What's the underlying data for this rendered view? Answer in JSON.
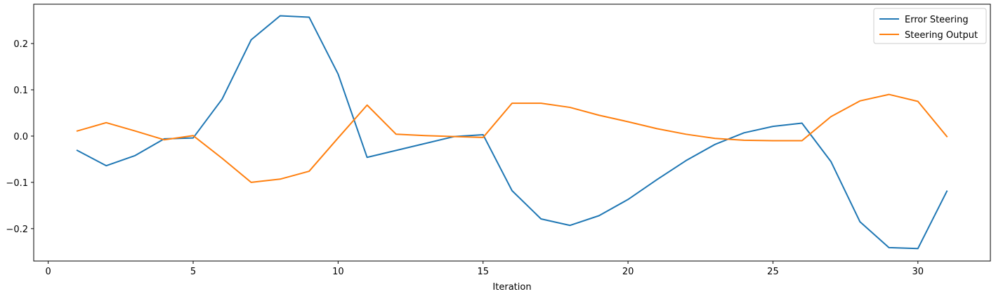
{
  "chart_data": {
    "type": "line",
    "title": "",
    "xlabel": "Iteration",
    "ylabel": "",
    "xlim": [
      -0.5,
      32.5
    ],
    "ylim": [
      -0.27,
      0.285
    ],
    "xticks": [
      0,
      5,
      10,
      15,
      20,
      25,
      30
    ],
    "yticks": [
      -0.2,
      -0.1,
      0.0,
      0.1,
      0.2
    ],
    "ytick_labels": [
      "−0.2",
      "−0.1",
      "0.0",
      "0.1",
      "0.2"
    ],
    "xtick_labels": [
      "0",
      "5",
      "10",
      "15",
      "20",
      "25",
      "30"
    ],
    "grid": false,
    "legend_position": "upper right",
    "x": [
      1,
      2,
      3,
      4,
      5,
      6,
      7,
      8,
      9,
      10,
      11,
      12,
      13,
      14,
      15,
      16,
      17,
      18,
      19,
      20,
      21,
      22,
      23,
      24,
      25,
      26,
      27,
      28,
      29,
      30,
      31
    ],
    "series": [
      {
        "name": "Error Steering",
        "color": "#1f77b4",
        "values": [
          -0.031,
          -0.064,
          -0.042,
          -0.006,
          -0.004,
          0.08,
          0.208,
          0.26,
          0.257,
          0.134,
          -0.046,
          -0.031,
          -0.016,
          -0.001,
          0.003,
          -0.118,
          -0.179,
          -0.193,
          -0.172,
          -0.137,
          -0.094,
          -0.053,
          -0.018,
          0.007,
          0.021,
          0.028,
          -0.055,
          -0.185,
          -0.241,
          -0.243,
          -0.119
        ]
      },
      {
        "name": "Steering Output",
        "color": "#ff7f0e",
        "values": [
          0.011,
          0.029,
          0.011,
          -0.008,
          0.001,
          -0.048,
          -0.1,
          -0.093,
          -0.076,
          -0.004,
          0.067,
          0.004,
          0.001,
          -0.001,
          -0.003,
          0.071,
          0.071,
          0.062,
          0.045,
          0.031,
          0.016,
          0.004,
          -0.005,
          -0.009,
          -0.01,
          -0.01,
          0.042,
          0.076,
          0.09,
          0.075,
          -0.001
        ]
      }
    ]
  }
}
